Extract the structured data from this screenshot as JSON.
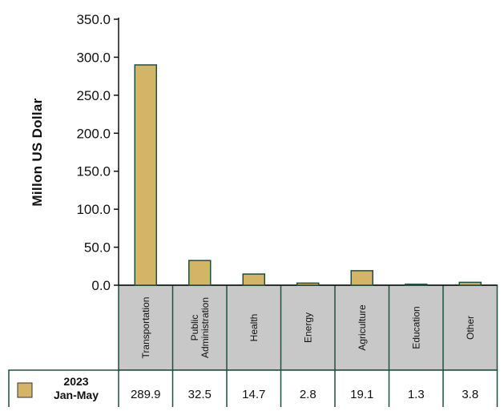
{
  "chart_data": {
    "type": "bar",
    "ylabel": "Millon US Dollar",
    "xlabel": "",
    "ylim": [
      0,
      350
    ],
    "yticks": [
      "0.0",
      "50.0",
      "100.0",
      "150.0",
      "200.0",
      "250.0",
      "300.0",
      "350.0"
    ],
    "categories": [
      "Transportation",
      "Public Administration",
      "Health",
      "Energy",
      "Agriculture",
      "Education",
      "Other"
    ],
    "series": [
      {
        "name": "2023 Jan-May",
        "name_lines": [
          "2023",
          "Jan-May"
        ],
        "values": [
          289.9,
          32.5,
          14.7,
          2.8,
          19.1,
          1.3,
          3.8
        ],
        "value_labels": [
          "289.9",
          "32.5",
          "14.7",
          "2.8",
          "19.1",
          "1.3",
          "3.8"
        ],
        "color": "#d4b467",
        "stroke": "#1f4f3f"
      }
    ],
    "grid": false,
    "legend": "data-table",
    "table_border_color": "#1f4f3f",
    "category_band_color": "#c8c8c8"
  }
}
